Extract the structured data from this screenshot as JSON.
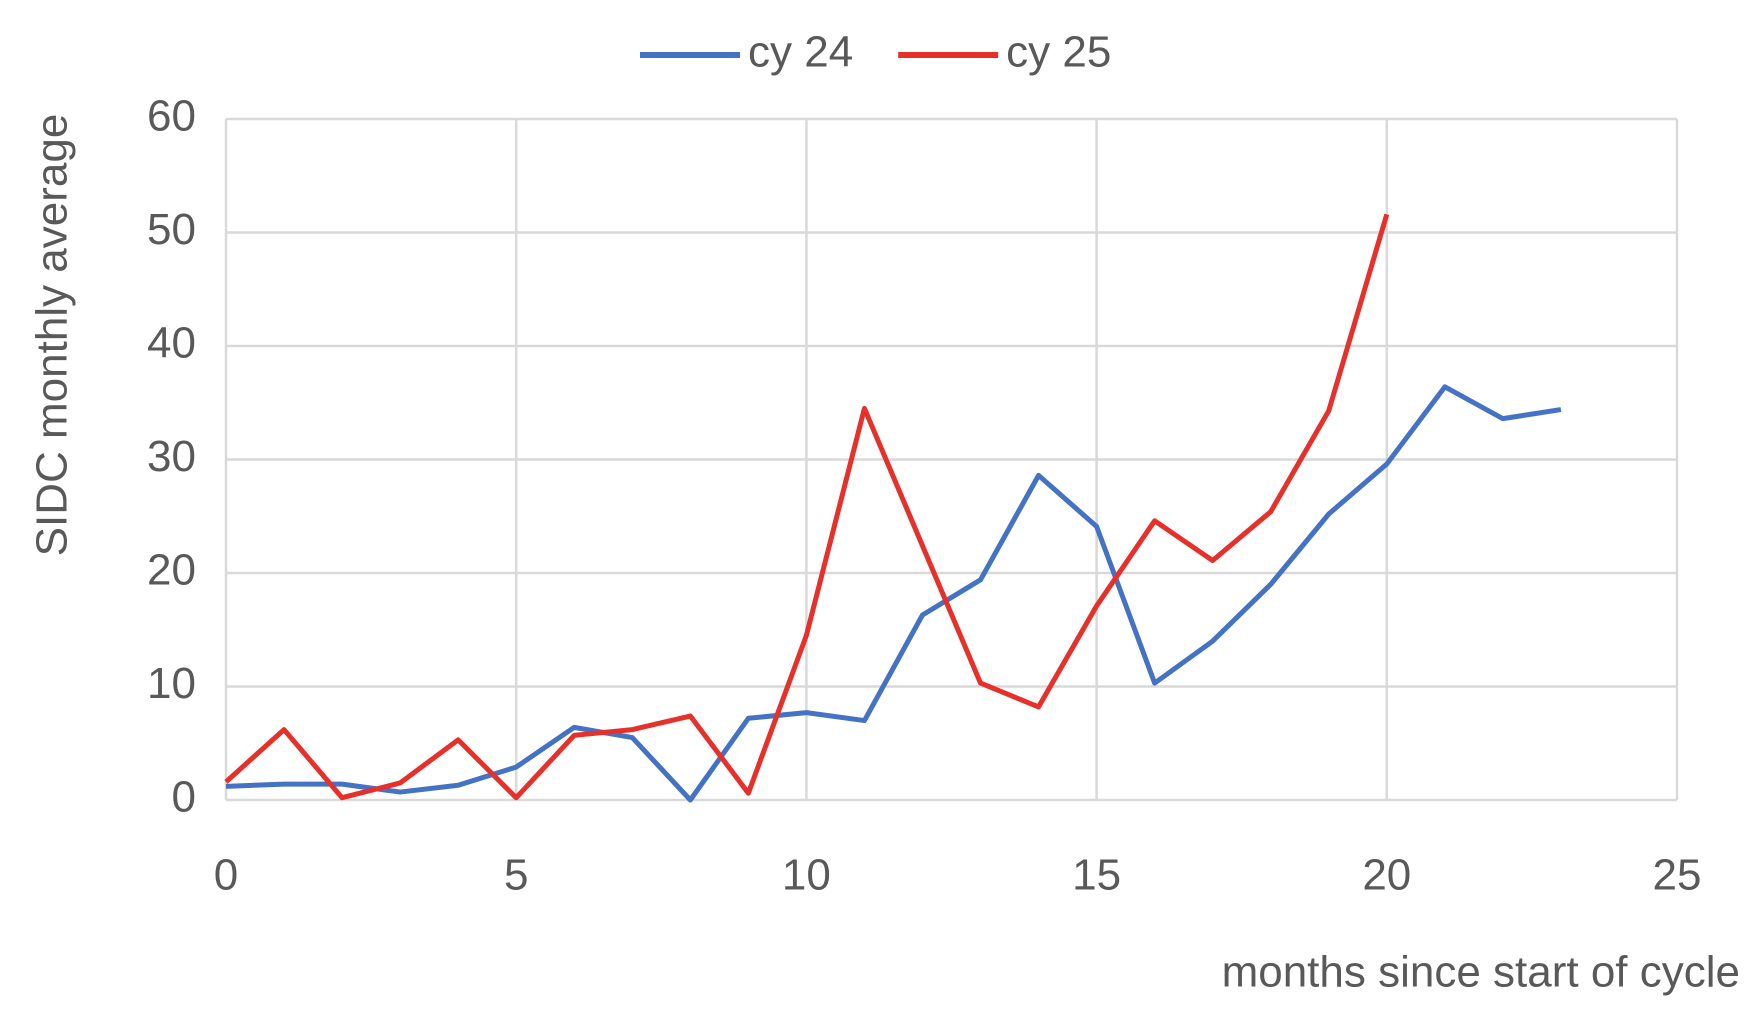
{
  "chart_data": {
    "type": "line",
    "xlabel": "months since start of cycle",
    "ylabel": "SIDC monthly average",
    "xlim": [
      0,
      25
    ],
    "xticks": [
      0,
      5,
      10,
      15,
      20,
      25
    ],
    "ylim": [
      0,
      60
    ],
    "yticks": [
      0,
      10,
      20,
      30,
      40,
      50,
      60
    ],
    "grid": true,
    "legend": "top",
    "series": [
      {
        "name": "cy 24",
        "color": "#4472c4",
        "x": [
          0,
          1,
          2,
          3,
          4,
          5,
          6,
          7,
          8,
          9,
          10,
          11,
          12,
          13,
          14,
          15,
          16,
          17,
          18,
          19,
          20,
          21,
          22,
          23
        ],
        "values": [
          1.2,
          1.4,
          1.4,
          0.7,
          1.3,
          2.9,
          6.4,
          5.5,
          0,
          7.2,
          7.7,
          7.0,
          16.3,
          19.4,
          28.6,
          24.1,
          10.3,
          14.0,
          19.0,
          25.2,
          29.6,
          36.4,
          33.6,
          34.4
        ]
      },
      {
        "name": "cy 25",
        "color": "#e8302a",
        "x": [
          0,
          1,
          2,
          3,
          4,
          5,
          6,
          7,
          8,
          9,
          10,
          11,
          12,
          13,
          14,
          15,
          16,
          17,
          18,
          19,
          20
        ],
        "values": [
          1.6,
          6.2,
          0.2,
          1.5,
          5.3,
          0.2,
          5.7,
          6.2,
          7.4,
          0.6,
          14.5,
          34.5,
          22.4,
          10.3,
          8.2,
          17.1,
          24.6,
          21.1,
          25.4,
          34.3,
          51.6
        ]
      }
    ]
  }
}
